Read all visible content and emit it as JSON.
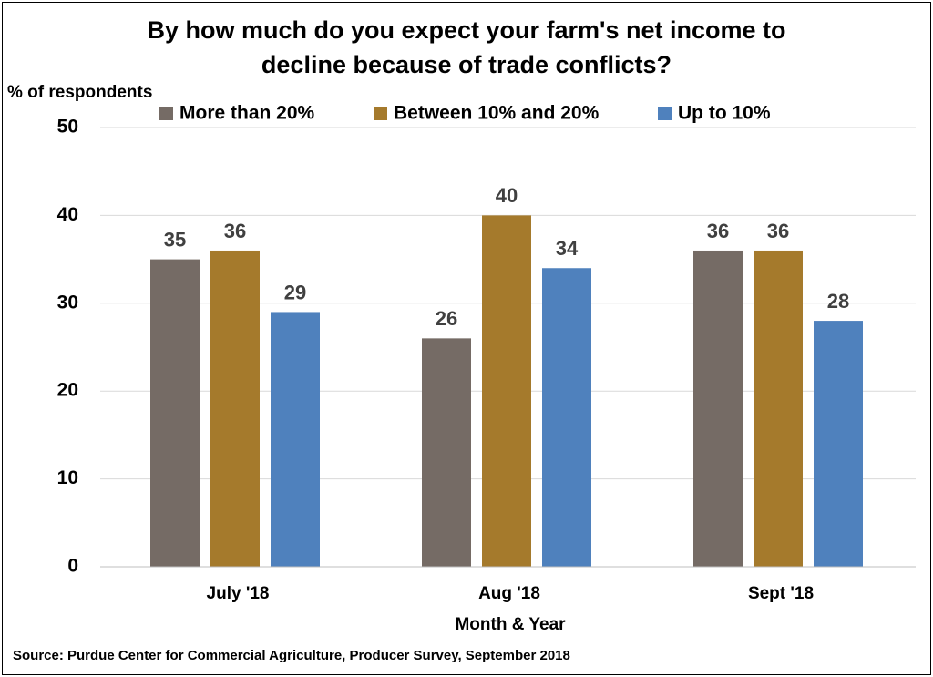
{
  "chart_data": {
    "type": "bar",
    "title": "By how much do you expect your farm's net income to decline because of trade conflicts?",
    "y_axis_label": "% of respondents",
    "x_axis_label": "Month & Year",
    "source": "Source: Purdue Center for Commercial Agriculture, Producer Survey, September 2018",
    "categories": [
      "July '18",
      "Aug '18",
      "Sept '18"
    ],
    "series": [
      {
        "name": "More than 20%",
        "color": "#756b65",
        "values": [
          35,
          26,
          36
        ]
      },
      {
        "name": "Between 10% and 20%",
        "color": "#a57a2c",
        "values": [
          36,
          40,
          36
        ]
      },
      {
        "name": "Up to 10%",
        "color": "#4f81bd",
        "values": [
          29,
          34,
          28
        ]
      }
    ],
    "ylim": [
      0,
      50
    ],
    "yticks": [
      0,
      10,
      20,
      30,
      40,
      50
    ],
    "grid": true,
    "legend": "top"
  }
}
